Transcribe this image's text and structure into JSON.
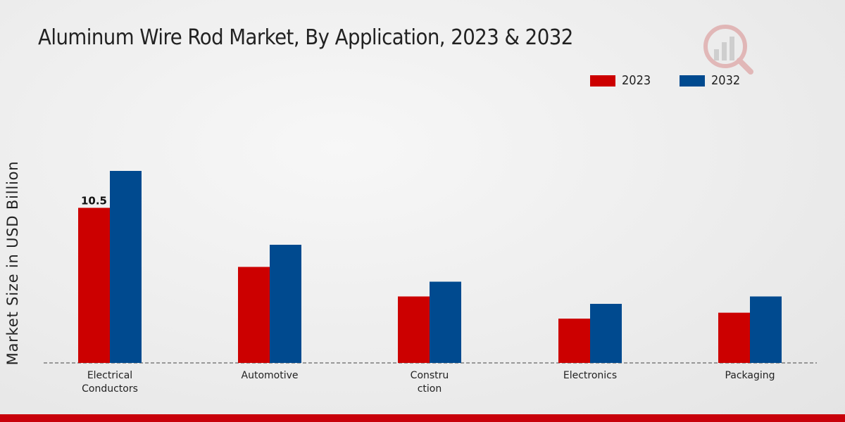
{
  "chart_data": {
    "type": "bar",
    "title": "Aluminum Wire Rod Market, By Application, 2023 & 2032",
    "xlabel": "",
    "ylabel": "Market Size in USD Billion",
    "categories": [
      [
        "Electrical",
        "Conductors"
      ],
      [
        "Automotive"
      ],
      [
        "Constru",
        "ction"
      ],
      [
        "Electronics"
      ],
      [
        "Packaging"
      ]
    ],
    "series": [
      {
        "name": "2023",
        "color": "#cc0000",
        "values": [
          10.5,
          6.5,
          4.5,
          3.0,
          3.4
        ]
      },
      {
        "name": "2032",
        "color": "#004a8f",
        "values": [
          13.0,
          8.0,
          5.5,
          4.0,
          4.5
        ]
      }
    ],
    "data_labels": [
      {
        "series": 0,
        "index": 0,
        "text": "10.5"
      }
    ],
    "ylim": [
      0,
      20
    ],
    "grid": false,
    "legend_position": "top-right"
  }
}
